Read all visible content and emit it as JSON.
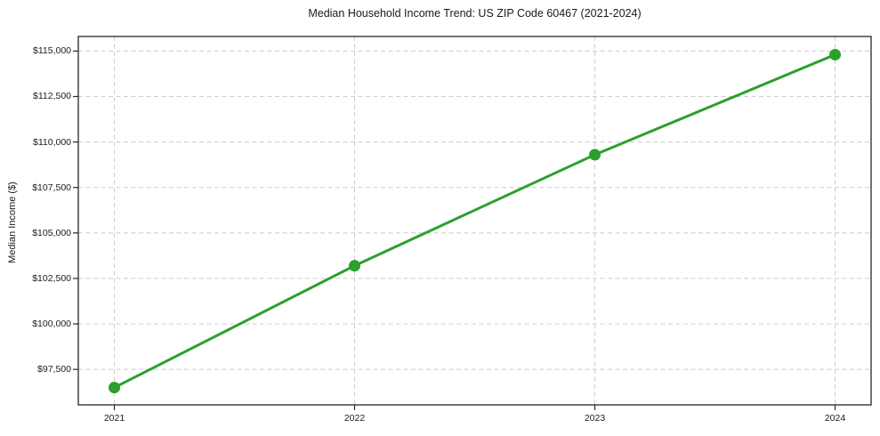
{
  "chart_data": {
    "type": "line",
    "title": "Median Household Income Trend: US ZIP Code 60467 (2021-2024)",
    "xlabel": "",
    "ylabel": "Median Income ($)",
    "x": [
      2021,
      2022,
      2023,
      2024
    ],
    "x_tick_labels": [
      "2021",
      "2022",
      "2023",
      "2024"
    ],
    "values": [
      96500,
      103200,
      109300,
      114800
    ],
    "y_ticks": [
      97500,
      100000,
      102500,
      105000,
      107500,
      110000,
      112500,
      115000
    ],
    "y_tick_labels": [
      "$97,500",
      "$100,000",
      "$102,500",
      "$105,000",
      "$107,500",
      "$110,000",
      "$112,500",
      "$115,000"
    ],
    "xlim": [
      2020.85,
      2024.15
    ],
    "ylim": [
      95550,
      115800
    ],
    "grid": true,
    "grid_style": "dashed",
    "legend_position": "none",
    "line_color": "#2ca02c",
    "marker": "circle"
  },
  "colors": {
    "line": "#2ca02c",
    "grid": "#cccccc",
    "axis": "#262626",
    "text": "#1a1a1a",
    "background": "#ffffff"
  }
}
